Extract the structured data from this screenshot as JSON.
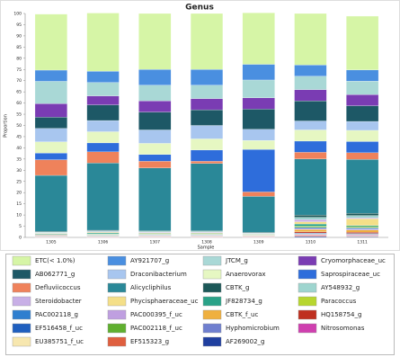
{
  "chart_data": {
    "type": "stacked_bar",
    "title": "Genus",
    "x_label": "Sample",
    "y_label": "Proportion",
    "categories": [
      "1305",
      "1306",
      "1307",
      "1308",
      "1309",
      "1310",
      "1311"
    ],
    "ylim": [
      0,
      100
    ],
    "yticks": [
      0,
      5,
      10,
      15,
      20,
      25,
      30,
      35,
      40,
      45,
      50,
      55,
      60,
      65,
      70,
      75,
      80,
      85,
      90,
      95,
      100
    ],
    "series": [
      {
        "name": "ETC(< 1.0%)",
        "color": "#d6f5a6",
        "values": [
          25,
          26,
          25,
          25,
          23,
          23,
          24
        ]
      },
      {
        "name": "AY921707_g",
        "color": "#4a8fe0",
        "values": [
          5,
          5,
          7,
          7,
          7,
          5,
          5
        ]
      },
      {
        "name": "JTCM_g",
        "color": "#a9d8d6",
        "values": [
          10,
          6,
          7,
          6,
          8,
          6,
          6
        ]
      },
      {
        "name": "Cryomorphaceae_uc",
        "color": "#7a3cb3",
        "values": [
          6,
          4,
          5,
          5,
          5,
          5,
          5
        ]
      },
      {
        "name": "AB062771_g",
        "color": "#1d5866",
        "values": [
          5,
          7,
          8,
          7,
          9,
          9,
          7
        ]
      },
      {
        "name": "Draconibacterium",
        "color": "#a8c6ef",
        "values": [
          6,
          5,
          6,
          6,
          5,
          4,
          4
        ]
      },
      {
        "name": "Anaerovorax",
        "color": "#e6f7c2",
        "values": [
          5,
          5,
          5,
          5,
          4,
          5,
          5
        ]
      },
      {
        "name": "Saprospiraceae_uc",
        "color": "#2e6ddb",
        "values": [
          3,
          4,
          3,
          5,
          19,
          5,
          5
        ]
      },
      {
        "name": "Defluviicoccus",
        "color": "#ef825b",
        "values": [
          7,
          5,
          3,
          1,
          2,
          3,
          3
        ]
      },
      {
        "name": "Alicycliphilus",
        "color": "#2a8898",
        "values": [
          25,
          30,
          28,
          30,
          16,
          25,
          24
        ]
      },
      {
        "name": "CBTK_g",
        "color": "#1c5858",
        "values": [
          0.3,
          0.3,
          0.3,
          0.3,
          0.3,
          1,
          1
        ]
      },
      {
        "name": "AY548932_g",
        "color": "#9ed5cf",
        "values": [
          0.3,
          0.3,
          0.3,
          0.3,
          0.2,
          1,
          1
        ]
      },
      {
        "name": "Steroidobacter",
        "color": "#c8afe6",
        "values": [
          0.2,
          0.3,
          0.3,
          0.3,
          0.2,
          1,
          0.5
        ]
      },
      {
        "name": "Phycisphaeraceae_uc",
        "color": "#f4df88",
        "values": [
          0.2,
          0.3,
          0.3,
          0.3,
          0.2,
          1,
          3
        ]
      },
      {
        "name": "JF828734_g",
        "color": "#2aa288",
        "values": [
          0.3,
          0.5,
          0.3,
          0.3,
          0.2,
          1,
          0.5
        ]
      },
      {
        "name": "Paracoccus",
        "color": "#b7d62f",
        "values": [
          0.1,
          0.2,
          0.2,
          0.2,
          0.1,
          0.5,
          0.5
        ]
      },
      {
        "name": "PAC002118_g",
        "color": "#2f7fcf",
        "values": [
          0.1,
          0.2,
          0.2,
          0.2,
          0.1,
          0.5,
          0.5
        ]
      },
      {
        "name": "PAC000395_f_uc",
        "color": "#bf9fe0",
        "values": [
          0.1,
          0.1,
          0.2,
          0.2,
          0.1,
          0.5,
          0.5
        ]
      },
      {
        "name": "CBTK_f_uc",
        "color": "#efb03f",
        "values": [
          0.1,
          0.1,
          0.1,
          0.1,
          0.1,
          1,
          1
        ]
      },
      {
        "name": "HQ158754_g",
        "color": "#bf2f1f",
        "values": [
          0.2,
          0.1,
          0.1,
          0.1,
          0.1,
          0.5,
          0.5
        ]
      },
      {
        "name": "EF516458_f_uc",
        "color": "#1f5fbf",
        "values": [
          0.1,
          0.1,
          0.1,
          0.1,
          0.1,
          0.3,
          0.3
        ]
      },
      {
        "name": "PAC002118_f_uc",
        "color": "#5faf2f",
        "values": [
          0.2,
          0.2,
          0.1,
          0.1,
          0.1,
          0.2,
          0.2
        ]
      },
      {
        "name": "Hyphomicrobium",
        "color": "#6f7fcf",
        "values": [
          0.1,
          0.1,
          0.1,
          0.1,
          0.1,
          0.2,
          0.2
        ]
      },
      {
        "name": "Nitrosomonas",
        "color": "#cf3faf",
        "values": [
          0.1,
          0.1,
          0.1,
          0.1,
          0.1,
          0.3,
          0.3
        ]
      },
      {
        "name": "EU385751_f_uc",
        "color": "#f7e7af",
        "values": [
          0.1,
          0.1,
          0.1,
          0.1,
          0.1,
          0.3,
          0.3
        ]
      },
      {
        "name": "EF515323_g",
        "color": "#df5f3f",
        "values": [
          0.1,
          0.1,
          0.1,
          0.1,
          0.1,
          0.3,
          0.2
        ]
      },
      {
        "name": "AF269002_g",
        "color": "#1f3f9f",
        "values": [
          0.1,
          0.1,
          0.1,
          0.1,
          0.1,
          0.4,
          0.3
        ]
      }
    ]
  }
}
